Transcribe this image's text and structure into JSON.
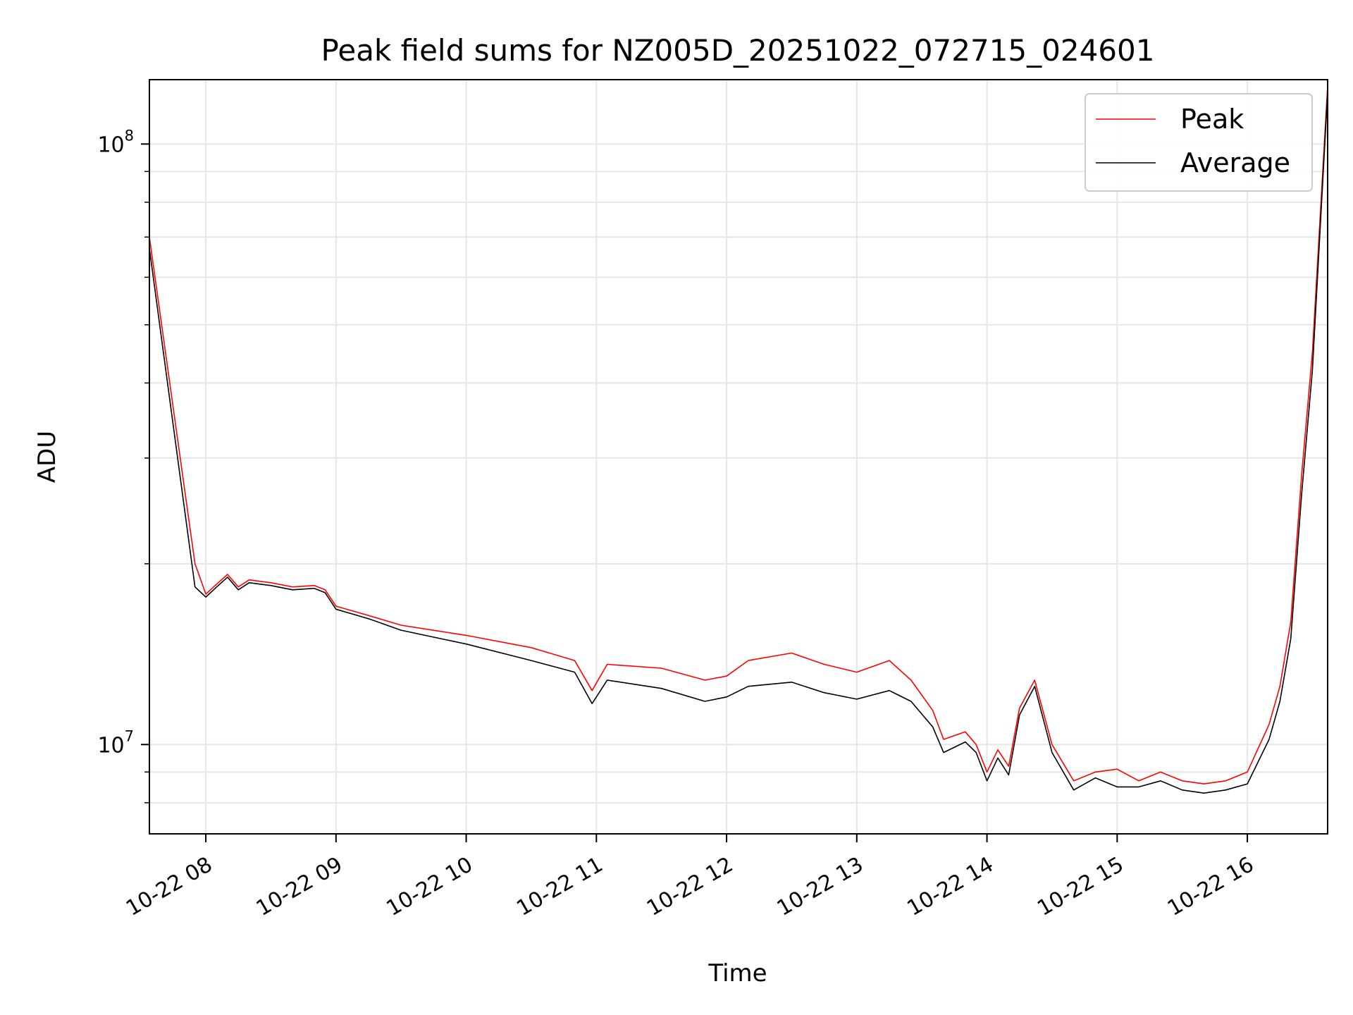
{
  "chart_data": {
    "type": "line",
    "title": "Peak field sums for NZ005D_20251022_072715_024601",
    "xlabel": "Time",
    "ylabel": "ADU",
    "yscale": "log",
    "xlim": [
      "10-22 07:34",
      "10-22 16:37"
    ],
    "ylim": [
      7100000,
      128000000
    ],
    "grid": true,
    "legend_placement": "top-right",
    "x_ticks": [
      "10-22 08",
      "10-22 09",
      "10-22 10",
      "10-22 11",
      "10-22 12",
      "10-22 13",
      "10-22 14",
      "10-22 15",
      "10-22 16"
    ],
    "y_ticks": [
      {
        "base": "10",
        "exp": "7",
        "value": 10000000
      },
      {
        "base": "10",
        "exp": "8",
        "value": 100000000
      }
    ],
    "series": [
      {
        "name": "Peak",
        "color": "#ff0000",
        "x": [
          "10-22 07:34",
          "10-22 07:55",
          "10-22 08:00",
          "10-22 08:05",
          "10-22 08:10",
          "10-22 08:15",
          "10-22 08:20",
          "10-22 08:30",
          "10-22 08:40",
          "10-22 08:50",
          "10-22 08:55",
          "10-22 09:00",
          "10-22 09:15",
          "10-22 09:30",
          "10-22 10:00",
          "10-22 10:30",
          "10-22 10:50",
          "10-22 10:58",
          "10-22 11:05",
          "10-22 11:30",
          "10-22 11:50",
          "10-22 12:00",
          "10-22 12:10",
          "10-22 12:30",
          "10-22 12:45",
          "10-22 13:00",
          "10-22 13:15",
          "10-22 13:25",
          "10-22 13:35",
          "10-22 13:40",
          "10-22 13:50",
          "10-22 13:55",
          "10-22 14:00",
          "10-22 14:05",
          "10-22 14:10",
          "10-22 14:15",
          "10-22 14:22",
          "10-22 14:30",
          "10-22 14:40",
          "10-22 14:50",
          "10-22 15:00",
          "10-22 15:10",
          "10-22 15:20",
          "10-22 15:30",
          "10-22 15:40",
          "10-22 15:50",
          "10-22 16:00",
          "10-22 16:10",
          "10-22 16:15",
          "10-22 16:20",
          "10-22 16:25",
          "10-22 16:30",
          "10-22 16:37"
        ],
        "y": [
          70000000,
          20000000,
          17800000,
          18500000,
          19200000,
          18300000,
          18800000,
          18600000,
          18300000,
          18400000,
          18100000,
          17000000,
          16400000,
          15800000,
          15200000,
          14500000,
          13800000,
          12300000,
          13600000,
          13400000,
          12800000,
          13000000,
          13800000,
          14200000,
          13600000,
          13200000,
          13800000,
          12800000,
          11400000,
          10200000,
          10500000,
          10000000,
          9000000,
          9800000,
          9200000,
          11500000,
          12800000,
          10000000,
          8700000,
          9000000,
          9100000,
          8700000,
          9000000,
          8700000,
          8600000,
          8700000,
          9000000,
          10800000,
          12500000,
          16000000,
          28000000,
          45000000,
          125000000
        ]
      },
      {
        "name": "Average",
        "color": "#000000",
        "x": [
          "10-22 07:34",
          "10-22 07:55",
          "10-22 08:00",
          "10-22 08:05",
          "10-22 08:10",
          "10-22 08:15",
          "10-22 08:20",
          "10-22 08:30",
          "10-22 08:40",
          "10-22 08:50",
          "10-22 08:55",
          "10-22 09:00",
          "10-22 09:15",
          "10-22 09:30",
          "10-22 10:00",
          "10-22 10:30",
          "10-22 10:50",
          "10-22 10:58",
          "10-22 11:05",
          "10-22 11:30",
          "10-22 11:50",
          "10-22 12:00",
          "10-22 12:10",
          "10-22 12:30",
          "10-22 12:45",
          "10-22 13:00",
          "10-22 13:15",
          "10-22 13:25",
          "10-22 13:35",
          "10-22 13:40",
          "10-22 13:50",
          "10-22 13:55",
          "10-22 14:00",
          "10-22 14:05",
          "10-22 14:10",
          "10-22 14:15",
          "10-22 14:22",
          "10-22 14:30",
          "10-22 14:40",
          "10-22 14:50",
          "10-22 15:00",
          "10-22 15:10",
          "10-22 15:20",
          "10-22 15:30",
          "10-22 15:40",
          "10-22 15:50",
          "10-22 16:00",
          "10-22 16:10",
          "10-22 16:15",
          "10-22 16:20",
          "10-22 16:25",
          "10-22 16:30",
          "10-22 16:37"
        ],
        "y": [
          67000000,
          18300000,
          17600000,
          18300000,
          19000000,
          18100000,
          18600000,
          18400000,
          18100000,
          18200000,
          17900000,
          16800000,
          16200000,
          15500000,
          14700000,
          13800000,
          13200000,
          11700000,
          12800000,
          12400000,
          11800000,
          12000000,
          12500000,
          12700000,
          12200000,
          11900000,
          12300000,
          11800000,
          10700000,
          9700000,
          10100000,
          9700000,
          8700000,
          9500000,
          8900000,
          11200000,
          12500000,
          9700000,
          8400000,
          8800000,
          8500000,
          8500000,
          8700000,
          8400000,
          8300000,
          8400000,
          8600000,
          10200000,
          11800000,
          15000000,
          26000000,
          42000000,
          122000000
        ]
      }
    ]
  }
}
